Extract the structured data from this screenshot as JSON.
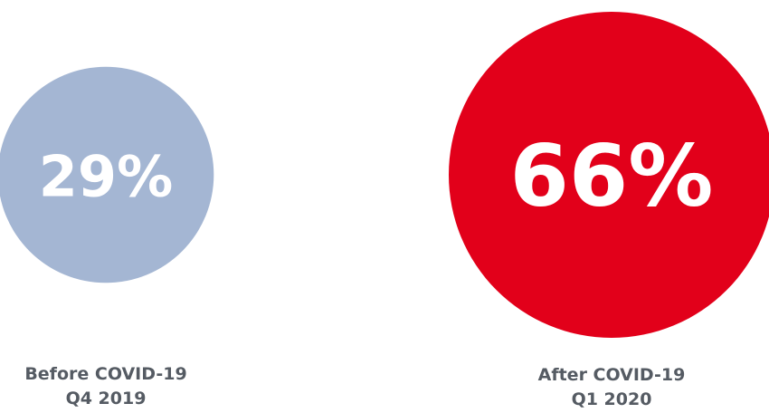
{
  "chart_data": {
    "type": "bubble",
    "unit": "%",
    "items": [
      {
        "value": 29,
        "value_label": "29%",
        "label_line1": "Before COVID-19",
        "label_line2": "Q4 2019",
        "color": "#a4b6d3"
      },
      {
        "value": 66,
        "value_label": "66%",
        "label_line1": "After COVID-19",
        "label_line2": "Q1 2020",
        "color": "#e2001a"
      }
    ]
  }
}
